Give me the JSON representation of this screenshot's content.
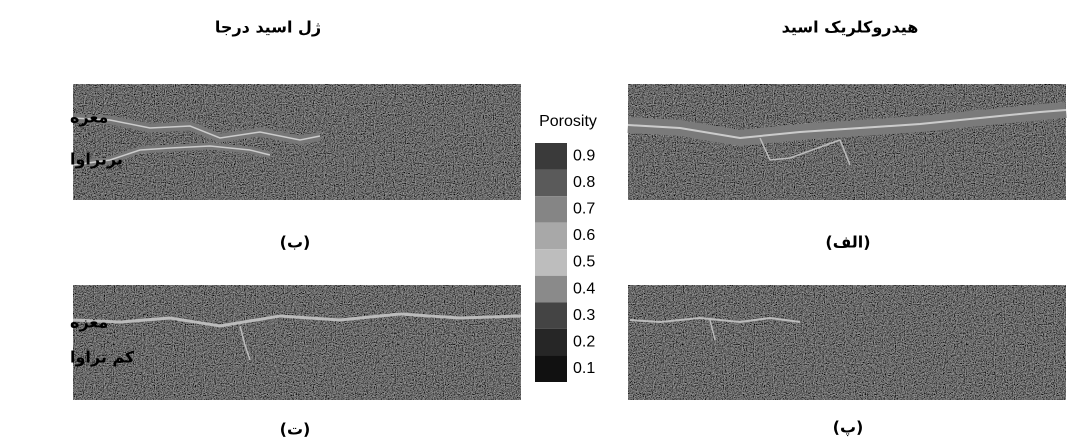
{
  "columns": {
    "left_title": "ژل اسید درجا",
    "right_title": "هیدروکلریک اسید"
  },
  "rows": {
    "top": [
      "مغزه",
      "پرتراوا"
    ],
    "bottom": [
      "مغزه",
      "کم تراوا"
    ]
  },
  "captions": {
    "top_right": "(الف)",
    "top_left": "(ب)",
    "bottom_right": "(پ)",
    "bottom_left": "(ت)"
  },
  "colorbar": {
    "title": "Porosity",
    "ticks": [
      0.9,
      0.8,
      0.7,
      0.6,
      0.5,
      0.4,
      0.3,
      0.2,
      0.1
    ],
    "colors": [
      "#3a3a3a",
      "#5a5a5a",
      "#858585",
      "#a8a8a8",
      "#bdbdbd",
      "#8a8a8a",
      "#444444",
      "#262626",
      "#111111"
    ]
  }
}
